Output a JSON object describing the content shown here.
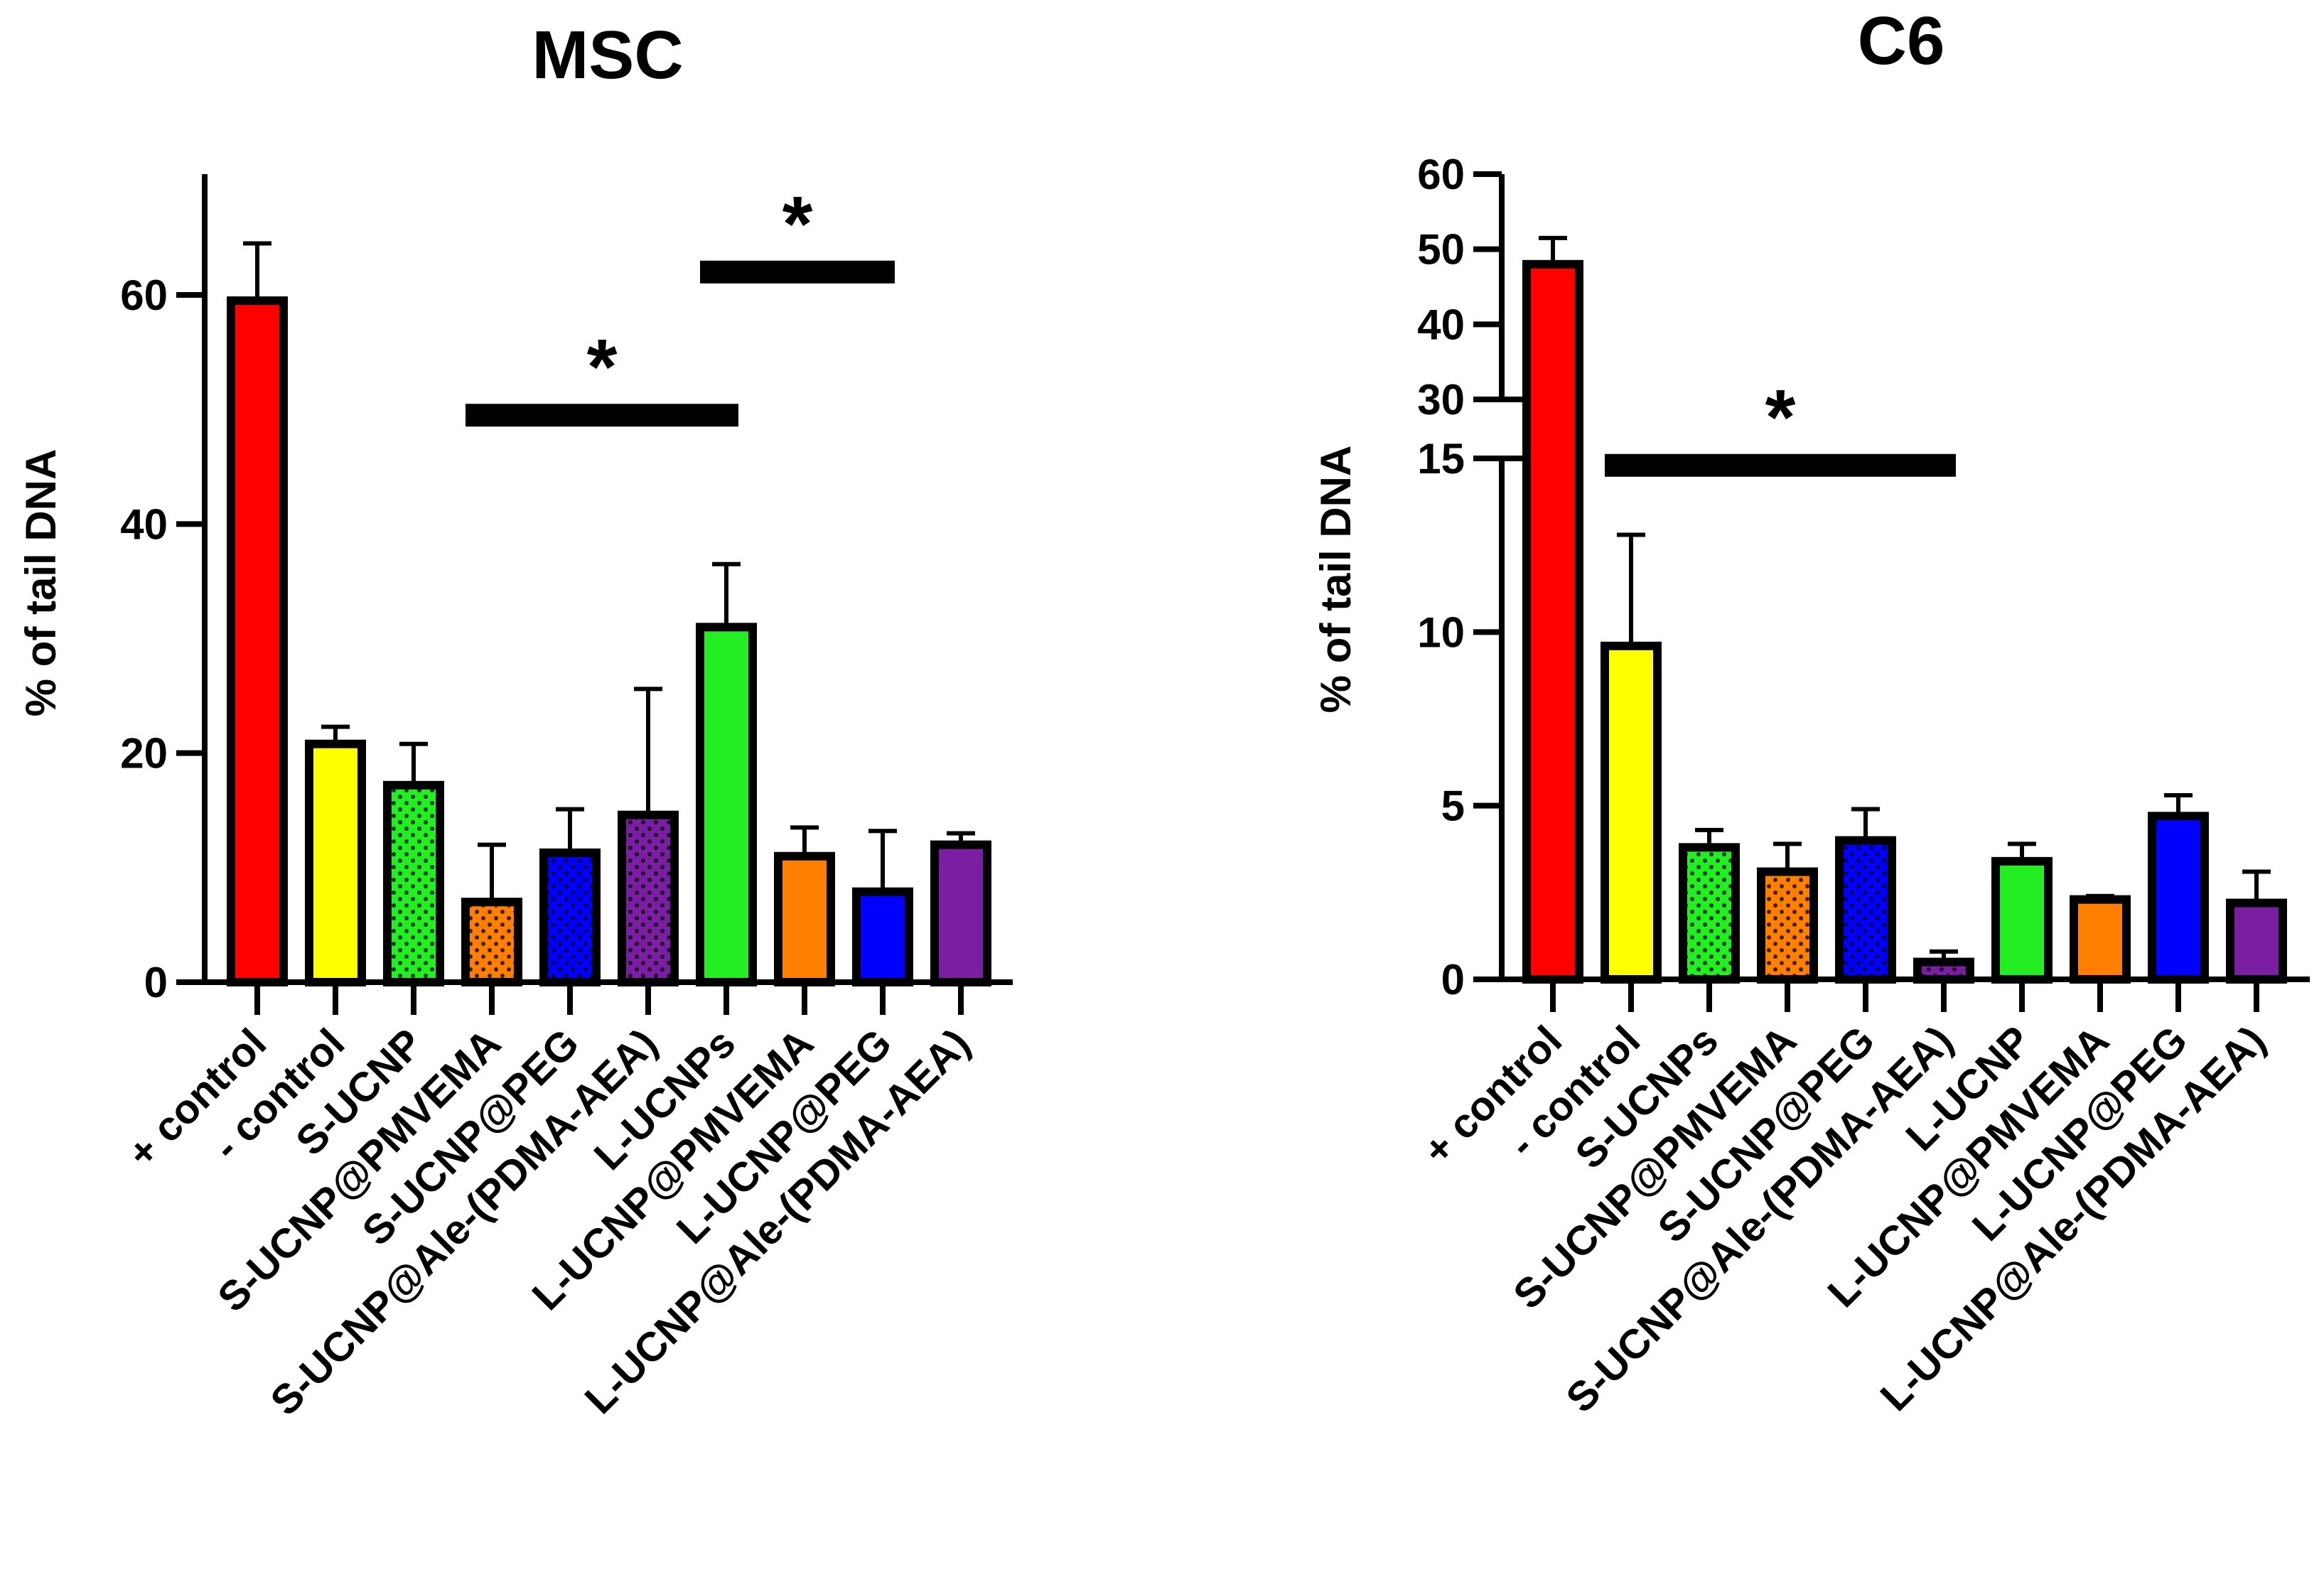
{
  "chart_data": [
    {
      "type": "bar",
      "title": "MSC",
      "ylabel": "% of tail DNA",
      "xlabel": "",
      "ylim": [
        0,
        70
      ],
      "yticks": [
        0,
        20,
        40,
        60
      ],
      "categories": [
        "+ control",
        "- control",
        "S-UCNP",
        "S-UCNP@PMVEMA",
        "S-UCNP@PEG",
        "S-UCNP@Ale-(PDMA-AEA)",
        "L-UCNPs",
        "L-UCNP@PMVEMA",
        "L-UCNP@PEG",
        "L-UCNP@Ale-(PDMA-AEA)"
      ],
      "values": [
        59.5,
        20.8,
        17.2,
        7.0,
        11.3,
        14.6,
        31.0,
        11.0,
        7.9,
        12.0
      ],
      "errors": [
        5.0,
        1.5,
        3.6,
        5.0,
        3.8,
        11.0,
        5.5,
        2.5,
        5.3,
        1.0
      ],
      "colors": [
        "#ff0000",
        "#ffff00",
        "#22ee22",
        "#ff7f00",
        "#0000ff",
        "#7a1fa2",
        "#22ee22",
        "#ff7f00",
        "#0000ff",
        "#7a1fa2"
      ],
      "dotted": [
        false,
        false,
        true,
        true,
        true,
        true,
        false,
        false,
        false,
        false
      ],
      "significance": [
        {
          "from": 3,
          "to": 6,
          "y": 49.5,
          "label": "*"
        },
        {
          "from": 6,
          "to": 8,
          "y": 62.0,
          "label": "*"
        }
      ],
      "grid": false,
      "legend": "none"
    },
    {
      "type": "bar",
      "title": "C6",
      "ylabel": "% of tail DNA",
      "xlabel": "",
      "ylim": [
        0,
        60
      ],
      "axis_break": [
        15,
        30
      ],
      "yticks_lower": [
        0,
        5,
        10,
        15
      ],
      "yticks_upper": [
        30,
        40,
        50,
        60
      ],
      "categories": [
        "+ control",
        "- control",
        "S-UCNPs",
        "S-UCNP@PMVEMA",
        "S-UCNP@PEG",
        "S-UCNP@Ale-(PDMA-AEA)",
        "L-UCNP",
        "L-UCNP@PMVEMA",
        "L-UCNP@PEG",
        "L-UCNP@Ale-(PDMA-AEA)"
      ],
      "values": [
        48.0,
        9.6,
        3.8,
        3.1,
        4.0,
        0.5,
        3.4,
        2.3,
        4.7,
        2.2
      ],
      "errors": [
        3.5,
        3.2,
        0.5,
        0.8,
        0.9,
        0.3,
        0.5,
        0.1,
        0.6,
        0.9
      ],
      "colors": [
        "#ff0000",
        "#ffff00",
        "#22ee22",
        "#ff7f00",
        "#0000ff",
        "#7a1fa2",
        "#22ee22",
        "#ff7f00",
        "#0000ff",
        "#7a1fa2"
      ],
      "dotted": [
        false,
        false,
        true,
        true,
        true,
        true,
        false,
        false,
        false,
        false
      ],
      "significance": [
        {
          "from": 1,
          "to": 5,
          "y": 14.8,
          "label": "*"
        }
      ],
      "grid": false,
      "legend": "none"
    }
  ]
}
